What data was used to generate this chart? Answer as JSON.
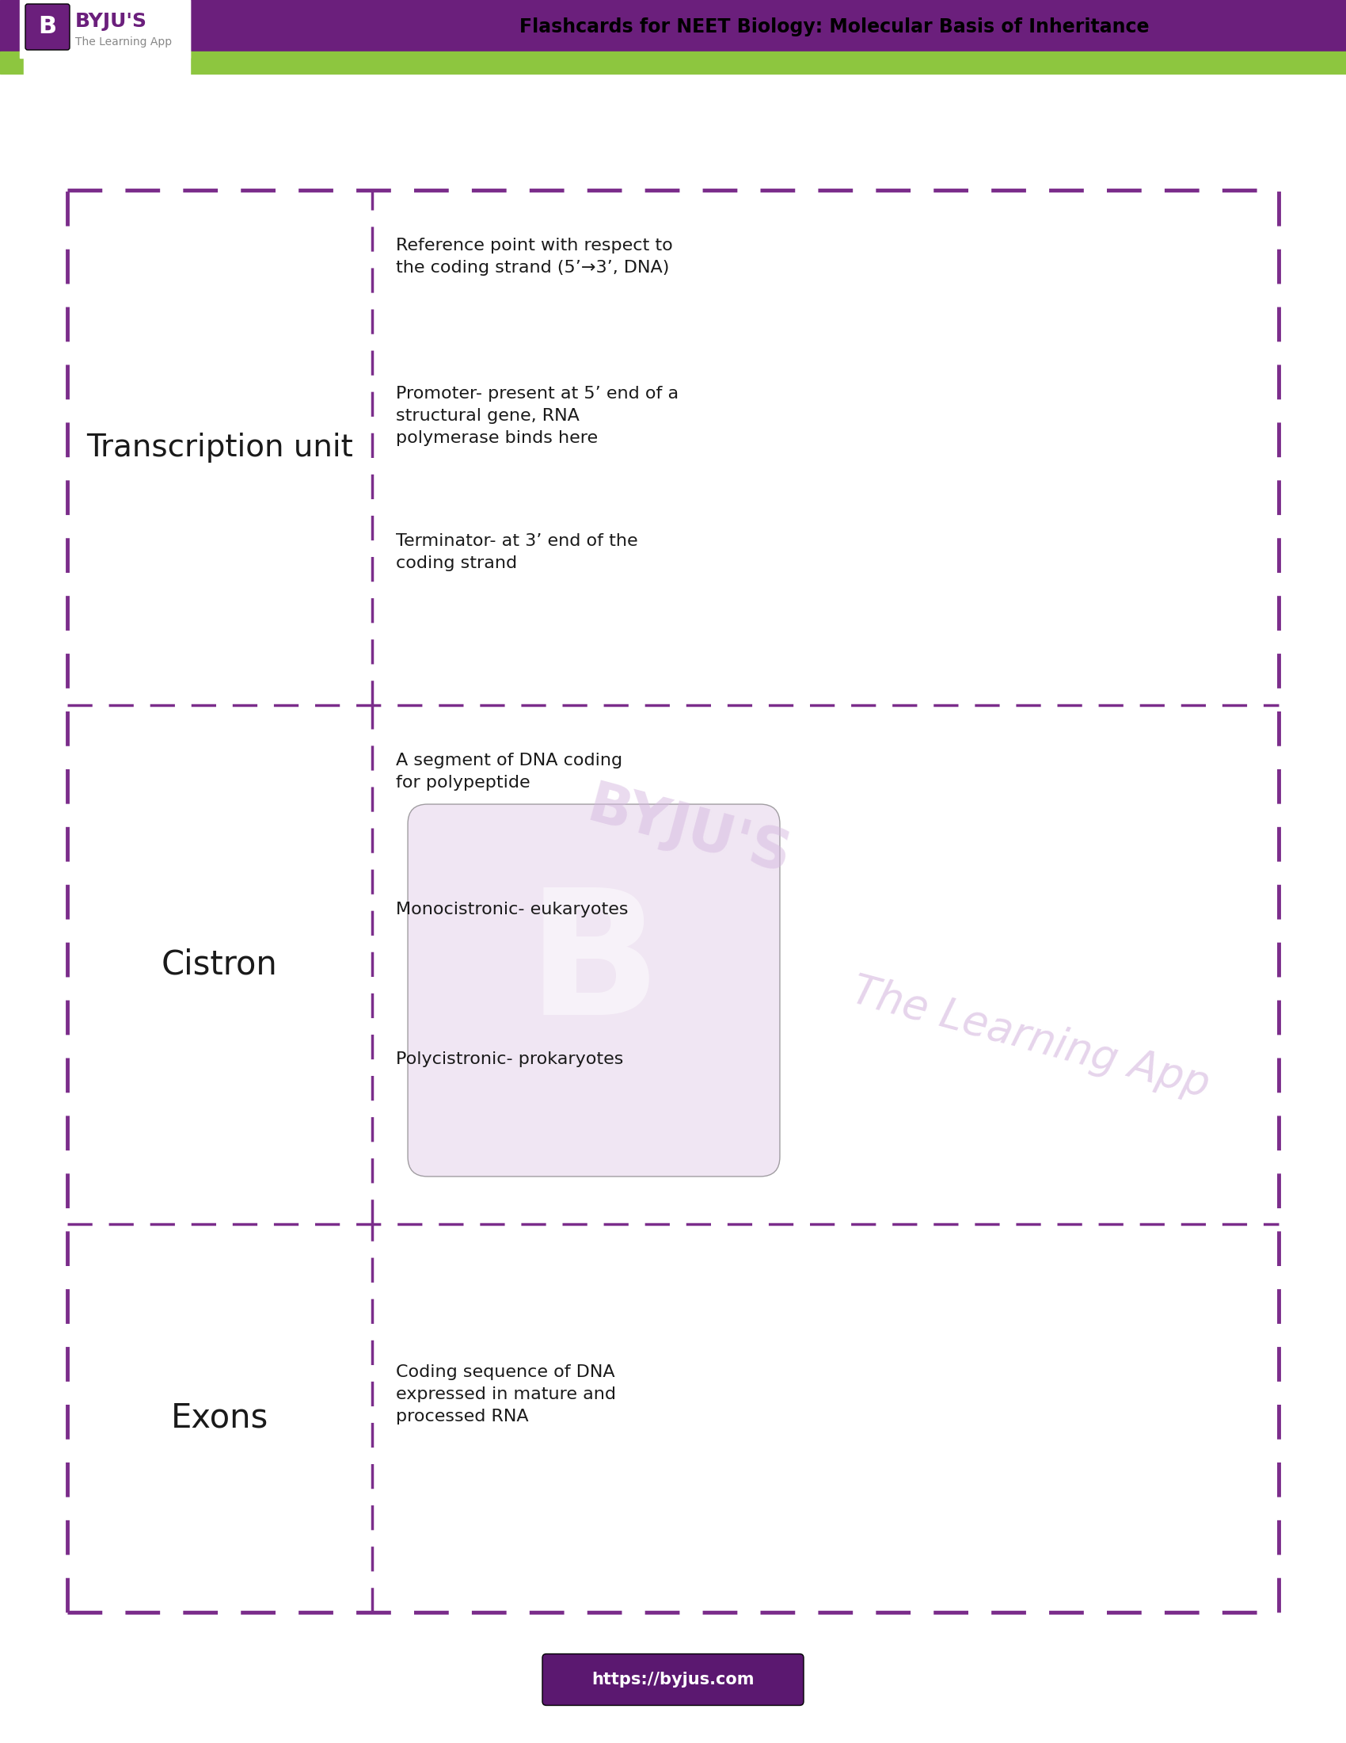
{
  "header_purple": "#6B1F7C",
  "header_green": "#8DC63F",
  "bg_color": "#FFFFFF",
  "dashed_color": "#7B2D8B",
  "text_color": "#1a1a1a",
  "url_bg": "#5B1870",
  "url_text": "#FFFFFF",
  "url": "https://byjus.com",
  "header_title": "Flashcards for NEET Biology: Molecular Basis of Inheritance",
  "watermark_color": "#D5B8DF",
  "rows": [
    {
      "term": "Transcription unit",
      "term_fontsize": 28,
      "definitions": [
        "Reference point with respect to\nthe coding strand (5’→3’, DNA)",
        "Promoter- present at 5’ end of a\nstructural gene, RNA\npolymerase binds here",
        "Terminator- at 3’ end of the\ncoding strand"
      ]
    },
    {
      "term": "Cistron",
      "term_fontsize": 30,
      "definitions": [
        "A segment of DNA coding\nfor polypeptide",
        "Monocistronic- eukaryotes",
        "Polycistronic- prokaryotes"
      ]
    },
    {
      "term": "Exons",
      "term_fontsize": 30,
      "definitions": [
        "Coding sequence of DNA\nexpressed in mature and\nprocessed RNA"
      ]
    }
  ],
  "def_fontsize": 16,
  "def_linespacing": 1.5
}
